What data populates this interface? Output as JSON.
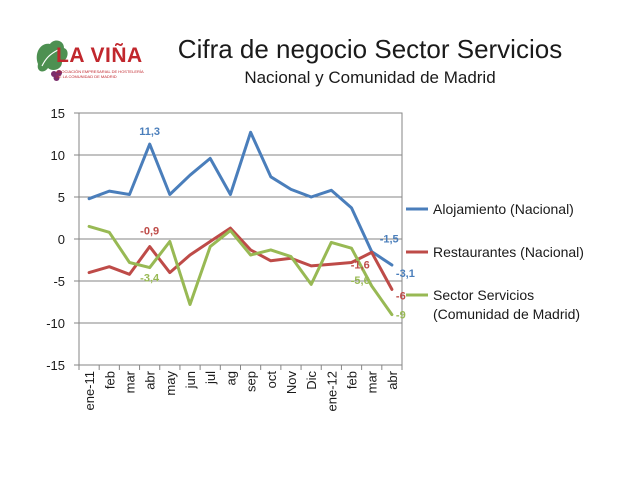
{
  "header": {
    "title": "Cifra de negocio Sector Servicios",
    "subtitle": "Nacional y Comunidad de Madrid",
    "logo_text": "LA VIÑA",
    "logo_subtext_1": "ASOCIACIÓN EMPRESARIAL DE HOSTELERÍA",
    "logo_subtext_2": "DE LA COMUNIDAD DE MADRID"
  },
  "colors": {
    "alojamiento": "#4a7ebb",
    "restaurantes": "#be4b48",
    "madrid": "#98b954",
    "grid": "#868686",
    "logo_red": "#c1272d",
    "logo_green": "#2e7d32"
  },
  "chart_data": {
    "type": "line",
    "title": "Cifra de negocio Sector Servicios",
    "subtitle": "Nacional y Comunidad de Madrid",
    "categories": [
      "ene-11",
      "feb",
      "mar",
      "abr",
      "may",
      "jun",
      "jul",
      "ag",
      "sep",
      "oct",
      "Nov",
      "Dic",
      "ene-12",
      "feb",
      "mar",
      "abr"
    ],
    "ylim": [
      -15,
      15
    ],
    "yticks": [
      "15",
      "10",
      "5",
      "0",
      "-5",
      "-10",
      "-15"
    ],
    "grid": true,
    "legend_position": "right",
    "series": [
      {
        "name": "Alojamiento (Nacional)",
        "color": "#4a7ebb",
        "values": [
          4.8,
          5.7,
          5.3,
          11.3,
          5.3,
          7.6,
          9.6,
          5.3,
          12.7,
          7.4,
          5.9,
          5.0,
          5.8,
          3.7,
          -1.5,
          -3.1
        ],
        "labels": [
          {
            "index": 3,
            "text": "11,3"
          },
          {
            "index": 14,
            "text": "-1,5"
          },
          {
            "index": 15,
            "text": "-3,1"
          }
        ]
      },
      {
        "name": "Restaurantes (Nacional)",
        "color": "#be4b48",
        "values": [
          -4.0,
          -3.3,
          -4.2,
          -0.9,
          -4.0,
          -1.9,
          -0.3,
          1.3,
          -1.3,
          -2.6,
          -2.3,
          -3.2,
          -3.0,
          -2.8,
          -1.6,
          -6.0
        ],
        "labels": [
          {
            "index": 3,
            "text": "-0,9"
          },
          {
            "index": 14,
            "text": "-1,6"
          },
          {
            "index": 15,
            "text": "-6"
          }
        ]
      },
      {
        "name": "Sector Servicios (Comunidad de Madrid)",
        "name_lines": [
          "Sector Servicios",
          "(Comunidad de Madrid)"
        ],
        "color": "#98b954",
        "values": [
          1.5,
          0.8,
          -2.8,
          -3.4,
          -0.3,
          -7.8,
          -0.9,
          1.0,
          -1.9,
          -1.3,
          -2.1,
          -5.4,
          -0.4,
          -1.1,
          -5.6,
          -9.0
        ],
        "labels": [
          {
            "index": 3,
            "text": "-3,4"
          },
          {
            "index": 14,
            "text": "-5,6"
          },
          {
            "index": 15,
            "text": "-9"
          }
        ]
      }
    ]
  }
}
